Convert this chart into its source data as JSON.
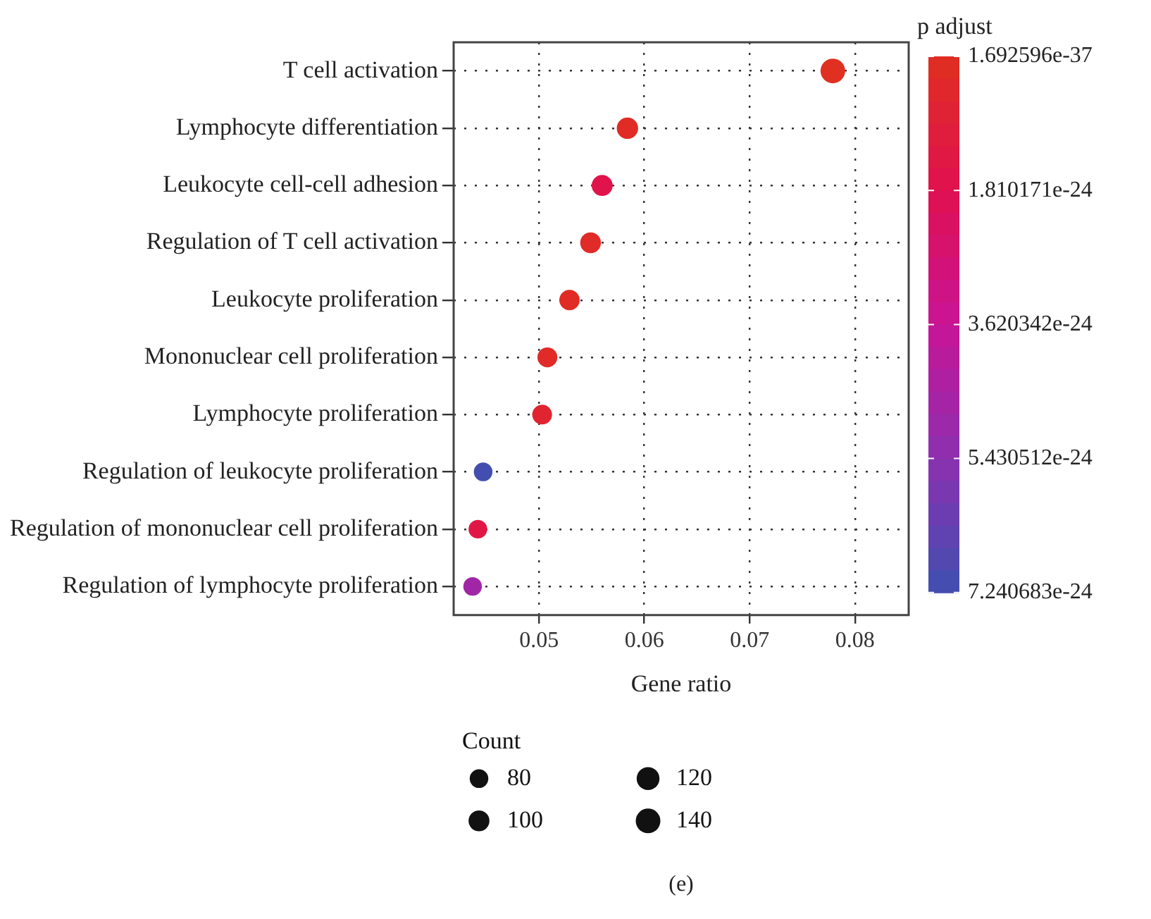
{
  "chart_data": {
    "type": "scatter",
    "orientation": "horizontal",
    "marker": "circle",
    "categories": [
      "T cell activation",
      "Lymphocyte differentiation",
      "Leukocyte cell-cell adhesion",
      "Regulation of T cell activation",
      "Leukocyte proliferation",
      "Mononuclear cell proliferation",
      "Lymphocyte proliferation",
      "Regulation of leukocyte proliferation",
      "Regulation of mononuclear cell proliferation",
      "Regulation of lymphocyte proliferation"
    ],
    "values": [
      0.0779,
      0.0584,
      0.056,
      0.0549,
      0.0529,
      0.0508,
      0.0503,
      0.0447,
      0.0442,
      0.0437
    ],
    "sizes": [
      140,
      105,
      101,
      99,
      95,
      91,
      90,
      80,
      80,
      79
    ],
    "size_legend": [
      80,
      100,
      120,
      140
    ],
    "legend_title": "Count",
    "cvalues": [
      2e-26,
      2e-25,
      1.6e-24,
      3e-25,
      2e-25,
      3e-25,
      6e-25,
      7.2e-24,
      1.4e-24,
      4.8e-24
    ],
    "clabel": "p adjust",
    "clim": [
      1.692596e-37,
      7.240683e-24
    ],
    "cticks": [
      1.692596e-37,
      1.810171e-24,
      3.620342e-24,
      5.430512e-24,
      7.240683e-24
    ],
    "xlabel": "Gene ratio",
    "xlim": [
      0.0419,
      0.0851
    ],
    "xticks": [
      0.05,
      0.06,
      0.07,
      0.08
    ],
    "grid": true,
    "annotations": [
      "(e)"
    ]
  }
}
